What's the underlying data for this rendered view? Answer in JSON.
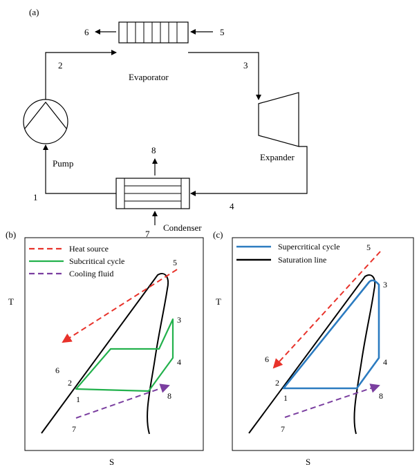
{
  "panel_a": {
    "label": "(a)",
    "components": {
      "evaporator": "Evaporator",
      "expander": "Expander",
      "condenser": "Condenser",
      "pump": "Pump"
    },
    "state_points": {
      "p1": "1",
      "p2": "2",
      "p3": "3",
      "p4": "4",
      "p5": "5",
      "p6": "6",
      "p7": "7",
      "p8": "8"
    }
  },
  "panel_b": {
    "label": "(b)",
    "xlabel": "S",
    "ylabel": "T",
    "legend": {
      "heat_source": "Heat source",
      "subcritical": "Subcritical cycle",
      "cooling_fluid": "Cooling fluid"
    },
    "points": {
      "p1": "1",
      "p2": "2",
      "p3": "3",
      "p4": "4",
      "p5": "5",
      "p6": "6",
      "p7": "7",
      "p8": "8"
    }
  },
  "panel_c": {
    "label": "(c)",
    "xlabel": "S",
    "ylabel": "T",
    "legend": {
      "supercritical": "Supercritical cycle",
      "saturation": "Saturation line"
    },
    "points": {
      "p1": "1",
      "p2": "2",
      "p3": "3",
      "p4": "4",
      "p5": "5",
      "p6": "6",
      "p7": "7",
      "p8": "8"
    }
  },
  "colors": {
    "heat_source": "#e8322a",
    "subcritical": "#22b14c",
    "cooling_fluid": "#7b3fa0",
    "supercritical": "#2b7bc0",
    "saturation": "#000000"
  }
}
